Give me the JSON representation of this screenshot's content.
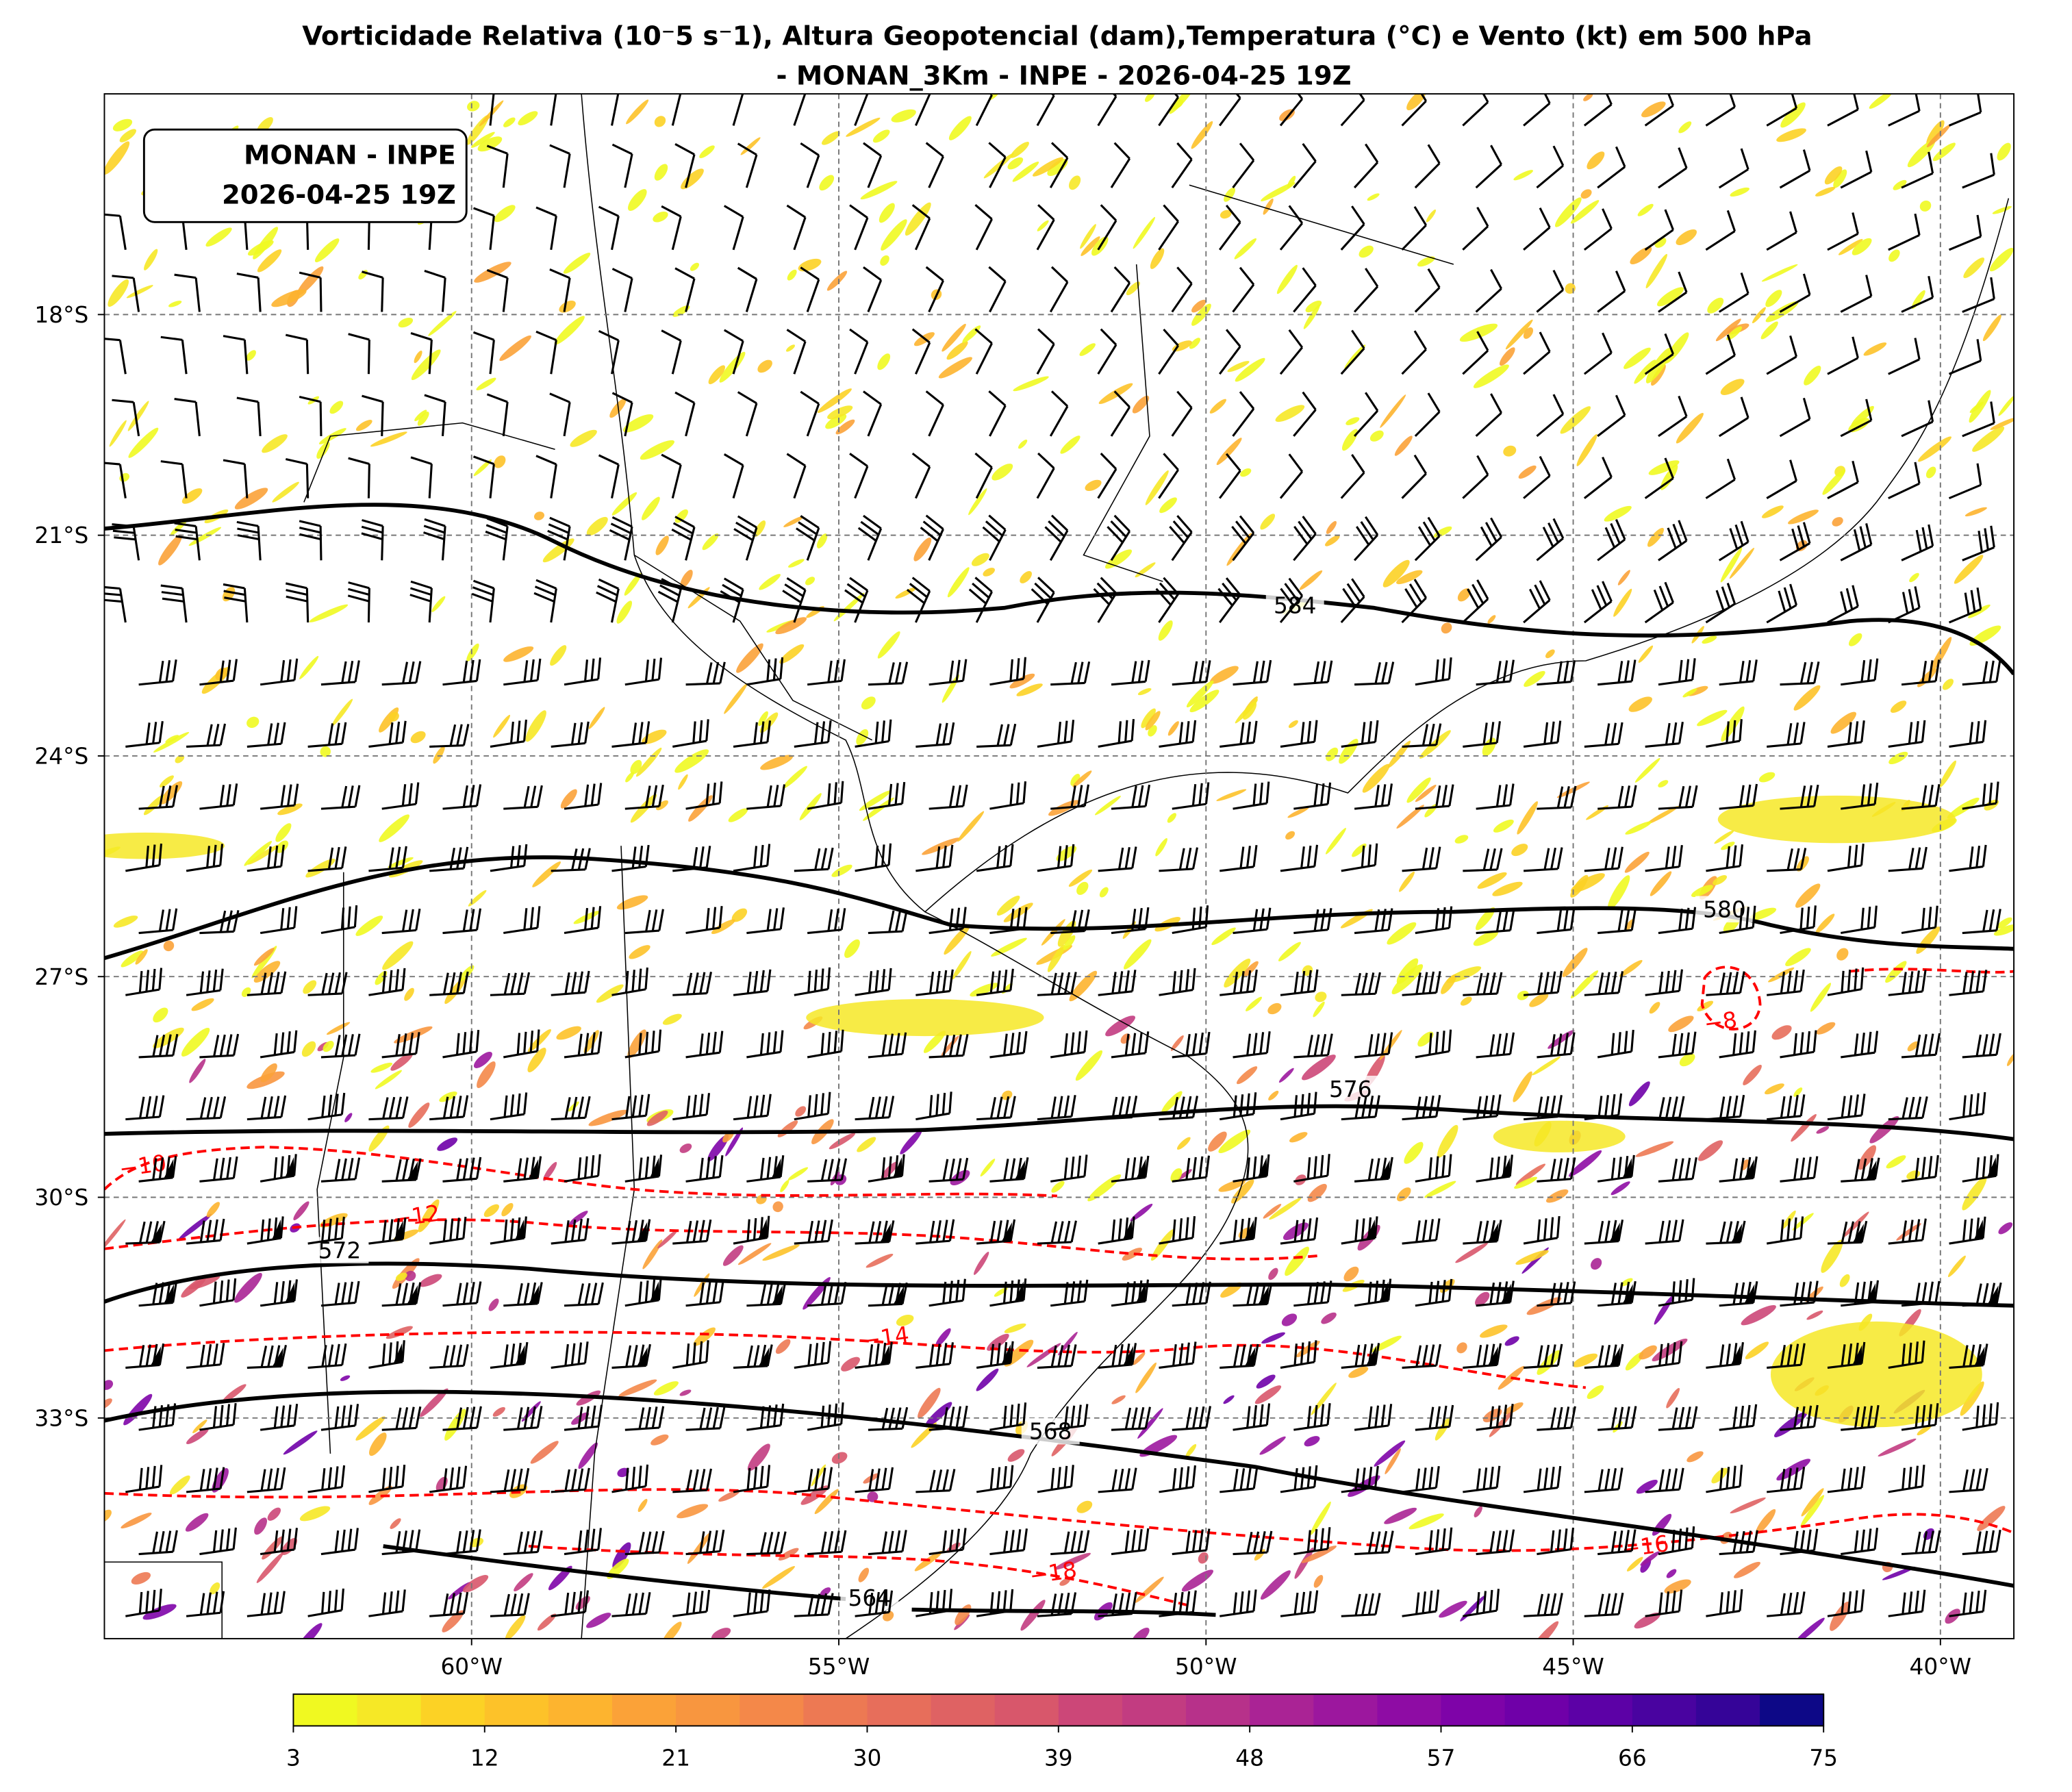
{
  "title": "Vorticidade Relativa (10$^{-5}$ s$^{-1}$), Altura Geopotencial (dam),Temperatura (°C) e Vento (kt) em 500 hPa",
  "title_display": "Vorticidade Relativa (10⁻5 s⁻1), Altura Geopotencial (dam),Temperatura (°C) e Vento (kt) em 500 hPa",
  "subtitle": "- MONAN_3Km - INPE - 2026-04-25 19Z",
  "info_box": [
    "MONAN - INPE",
    "2026-04-25 19Z"
  ],
  "map": {
    "lonlim": [
      -65,
      -39
    ],
    "latlim": [
      -36,
      -15
    ],
    "lon_ticks": [
      {
        "value": -60,
        "label": "60°W"
      },
      {
        "value": -55,
        "label": "55°W"
      },
      {
        "value": -50,
        "label": "50°W"
      },
      {
        "value": -45,
        "label": "45°W"
      },
      {
        "value": -40,
        "label": "40°W"
      }
    ],
    "lat_ticks": [
      {
        "value": -18,
        "label": "18°S"
      },
      {
        "value": -21,
        "label": "21°S"
      },
      {
        "value": -24,
        "label": "24°S"
      },
      {
        "value": -27,
        "label": "27°S"
      },
      {
        "value": -30,
        "label": "30°S"
      },
      {
        "value": -33,
        "label": "33°S"
      }
    ],
    "grid": true,
    "height_contours": [
      584,
      580,
      576,
      572,
      568,
      564
    ],
    "temperature_contours": [
      {
        "value": -8,
        "label": "−8"
      },
      {
        "value": -10,
        "label": "−10"
      },
      {
        "value": -12,
        "label": "−12"
      },
      {
        "value": -14,
        "label": "−14"
      },
      {
        "value": -16,
        "label": "−16"
      },
      {
        "value": -18,
        "label": "−18"
      }
    ],
    "height_color": "#000000",
    "temperature_color": "#ff0000"
  },
  "colorbar": {
    "range": [
      3,
      75
    ],
    "ticks": [
      3,
      12,
      21,
      30,
      39,
      48,
      57,
      66,
      75
    ],
    "colors": [
      "#f0f921",
      "#f6e826",
      "#fcd225",
      "#fdc229",
      "#fdb42f",
      "#fba238",
      "#f8963f",
      "#f48849",
      "#ed7953",
      "#e76e5b",
      "#df6263",
      "#d8576b",
      "#cc4778",
      "#c23c81",
      "#b7318a",
      "#aa2395",
      "#9c179e",
      "#8e0ca4",
      "#7e03a8",
      "#6f00a8",
      "#5c01a6",
      "#4903a0",
      "#350498",
      "#0d0887"
    ]
  }
}
